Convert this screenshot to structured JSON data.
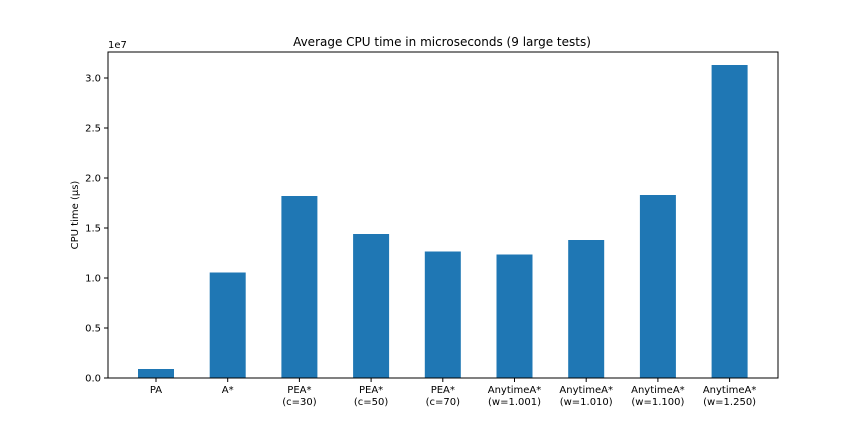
{
  "chart_data": {
    "type": "bar",
    "title": "Average CPU time in microseconds (9 large tests)",
    "xlabel": "",
    "ylabel": "CPU time (µs)",
    "y_offset_label": "1e7",
    "categories": [
      [
        "PA"
      ],
      [
        "A*"
      ],
      [
        "PEA*",
        "(c=30)"
      ],
      [
        "PEA*",
        "(c=50)"
      ],
      [
        "PEA*",
        "(c=70)"
      ],
      [
        "AnytimeA*",
        "(w=1.001)"
      ],
      [
        "AnytimeA*",
        "(w=1.010)"
      ],
      [
        "AnytimeA*",
        "(w=1.100)"
      ],
      [
        "AnytimeA*",
        "(w=1.250)"
      ]
    ],
    "values": [
      900000,
      10550000,
      18200000,
      14400000,
      12650000,
      12350000,
      13800000,
      18300000,
      31300000
    ],
    "ylim": [
      0,
      32600000
    ],
    "yticks": [
      0,
      5000000,
      10000000,
      15000000,
      20000000,
      25000000,
      30000000
    ],
    "ytick_labels": [
      "0.0",
      "0.5",
      "1.0",
      "1.5",
      "2.0",
      "2.5",
      "3.0"
    ],
    "bar_color": "#1f77b4",
    "grid": false,
    "legend": "none"
  }
}
